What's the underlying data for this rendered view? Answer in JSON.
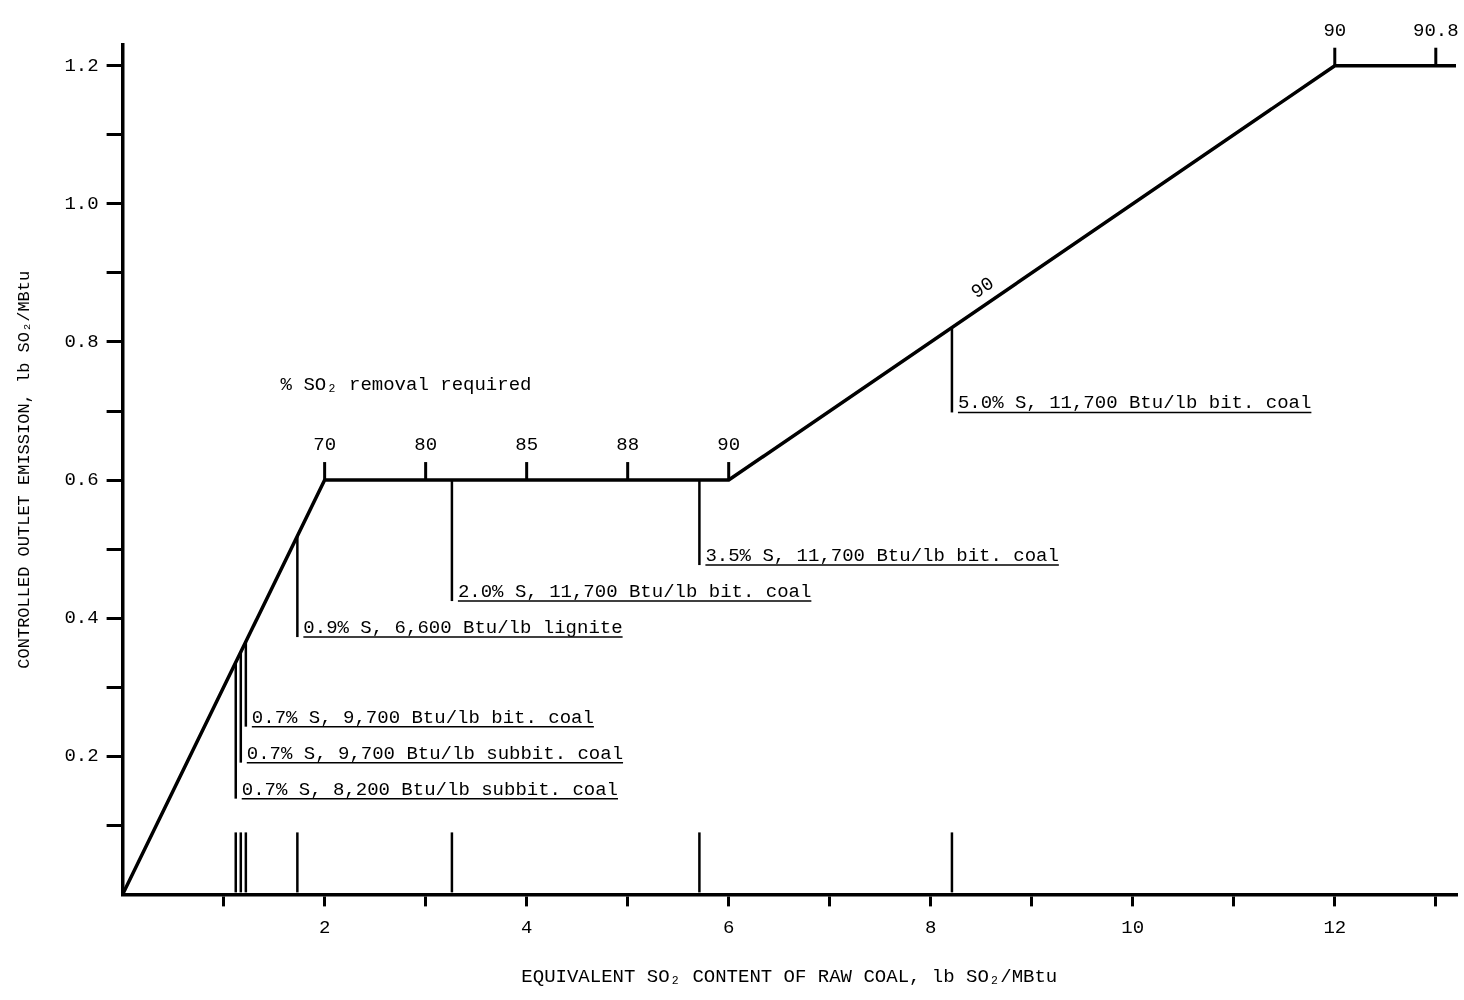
{
  "chart_data": {
    "type": "line",
    "xlabel": "EQUIVALENT SO₂ CONTENT OF RAW COAL, lb SO₂/MBtu",
    "ylabel": "CONTROLLED OUTLET EMISSION, lb SO₂/MBtu",
    "series": [
      {
        "color": "#000000",
        "x": [
          0,
          2,
          6,
          12,
          13.2
        ],
        "values": [
          0,
          0.6,
          0.6,
          1.2,
          1.2
        ]
      }
    ],
    "xlim": [
      0,
      13.2
    ],
    "ylim": [
      0,
      1.23
    ],
    "xticks": [
      {
        "value": 1,
        "label": null
      },
      2,
      {
        "value": 3,
        "label": null
      },
      4,
      {
        "value": 5,
        "label": null
      },
      6,
      {
        "value": 7,
        "label": null
      },
      8,
      {
        "value": 9,
        "label": null
      },
      10,
      {
        "value": 11,
        "label": null
      },
      12,
      {
        "value": 13,
        "label": null
      }
    ],
    "yticks": [
      {
        "value": 0.1,
        "label": null
      },
      0.2,
      {
        "value": 0.3,
        "label": null
      },
      0.4,
      {
        "value": 0.5,
        "label": null
      },
      0.6,
      {
        "value": 0.7,
        "label": null
      },
      0.8,
      {
        "value": 0.9,
        "label": null
      },
      {
        "value": 1,
        "label": "1.0"
      },
      {
        "value": 1.1,
        "label": null
      },
      1.2
    ],
    "marker": "none",
    "legend": false,
    "grid": false,
    "ref_lines": [
      {
        "axis": "x",
        "value": 1.12,
        "label": "0.7% S, 8,200 Btu/lb subbit. coal"
      },
      {
        "axis": "x",
        "value": 1.17,
        "label": "0.7% S, 9,700 Btu/lb subbit. coal"
      },
      {
        "axis": "x",
        "value": 1.22,
        "label": "0.7% S, 9,700 Btu/lb bit. coal"
      },
      {
        "axis": "x",
        "value": 1.73,
        "label": "0.9% S, 6,600 Btu/lb lignite"
      },
      {
        "axis": "x",
        "value": 3.26,
        "label": "2.0% S, 11,700 Btu/lb bit. coal"
      },
      {
        "axis": "x",
        "value": 5.71,
        "label": "3.5% S, 11,700 Btu/lb bit. coal"
      },
      {
        "axis": "x",
        "value": 8.21,
        "label": "5.0% S, 11,700 Btu/lb bit. coal"
      }
    ],
    "annotations": [
      "% SO₂ removal required",
      {
        "text": "70",
        "x": 2,
        "y": 0.6
      },
      {
        "text": "80",
        "x": 3,
        "y": 0.6
      },
      {
        "text": "85",
        "x": 4,
        "y": 0.6
      },
      {
        "text": "88",
        "x": 5,
        "y": 0.6
      },
      {
        "text": "90",
        "x": 6,
        "y": 0.6
      },
      {
        "text": "90",
        "x": 8.6,
        "y": 0.86
      },
      {
        "text": "90",
        "x": 12,
        "y": 1.2
      },
      {
        "text": "90.8",
        "x": 13,
        "y": 1.2
      }
    ]
  }
}
